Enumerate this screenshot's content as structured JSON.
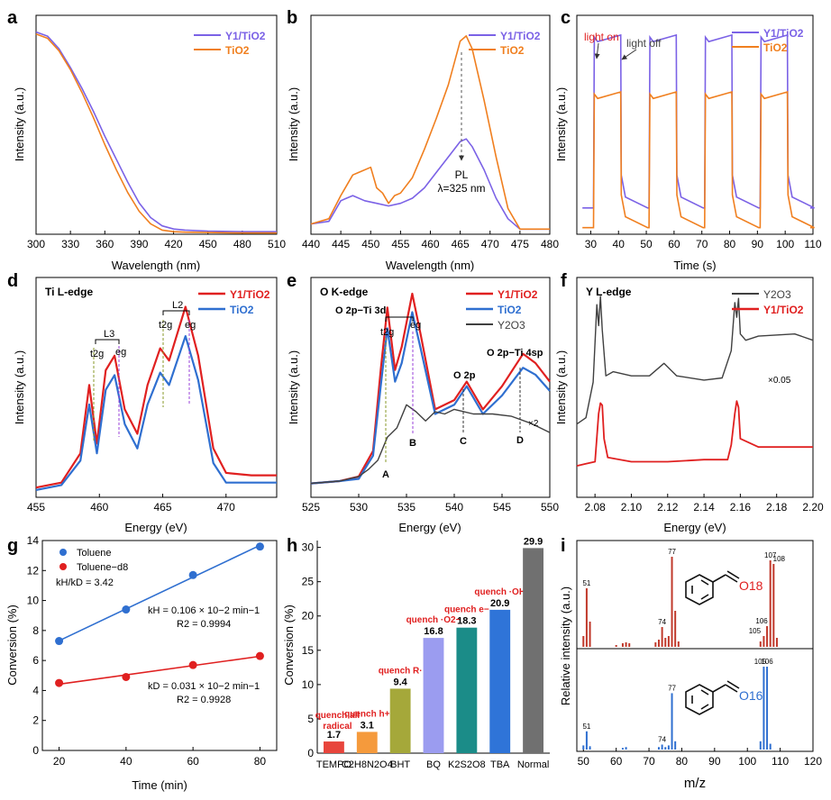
{
  "panels": {
    "a": {
      "label": "a",
      "xlabel": "Wavelength (nm)",
      "ylabel": "Intensity (a.u.)",
      "legend": [
        "Y1/TiO2",
        "TiO2"
      ],
      "xticks": [
        "300",
        "330",
        "360",
        "390",
        "420",
        "450",
        "480",
        "510"
      ]
    },
    "b": {
      "label": "b",
      "xlabel": "Wavelength (nm)",
      "ylabel": "Intensity (a.u.)",
      "legend": [
        "Y1/TiO2",
        "TiO2"
      ],
      "xticks": [
        "440",
        "445",
        "450",
        "455",
        "460",
        "465",
        "470",
        "475",
        "480"
      ],
      "annot_pl": "PL",
      "annot_lambda": "λ=325 nm"
    },
    "c": {
      "label": "c",
      "xlabel": "Time (s)",
      "ylabel": "Intensity (a.u.)",
      "legend": [
        "Y1/TiO2",
        "TiO2"
      ],
      "xticks": [
        "30",
        "40",
        "50",
        "60",
        "70",
        "80",
        "90",
        "100",
        "110"
      ],
      "annot_on": "light on",
      "annot_off": "light off"
    },
    "d": {
      "label": "d",
      "title": "Ti L-edge",
      "xlabel": "Energy (eV)",
      "ylabel": "Intensity (a.u.)",
      "legend": [
        "Y1/TiO2",
        "TiO2"
      ],
      "xticks": [
        "455",
        "460",
        "465",
        "470"
      ],
      "annot_l3": "L3",
      "annot_l2": "L2",
      "annot_t2g": "t2g",
      "annot_eg": "eg"
    },
    "e": {
      "label": "e",
      "title": "O K-edge",
      "xlabel": "Energy (eV)",
      "ylabel": "Intensity (a.u.)",
      "legend": [
        "Y1/TiO2",
        "TiO2",
        "Y2O3"
      ],
      "xticks": [
        "525",
        "530",
        "535",
        "540",
        "545",
        "550"
      ],
      "annot_o2p_ti3d": "O 2p−Ti 3d",
      "annot_o2p": "O 2p",
      "annot_o2p_ti4sp": "O 2p−Ti 4sp",
      "annot_t2g": "t2g",
      "annot_eg": "eg",
      "annot_x2": "×2",
      "points": [
        "A",
        "B",
        "C",
        "D"
      ]
    },
    "f": {
      "label": "f",
      "title": "Y L-edge",
      "xlabel": "Energy (eV)",
      "ylabel": "Intensity (a.u.)",
      "legend": [
        "Y2O3",
        "Y1/TiO2"
      ],
      "xticks": [
        "2.08",
        "2.10",
        "2.12",
        "2.14",
        "2.16",
        "2.18",
        "2.20"
      ],
      "annot_scale": "×0.05"
    },
    "g": {
      "label": "g",
      "xlabel": "Time (min)",
      "ylabel": "Conversion (%)",
      "legend": [
        "Toluene",
        "Toluene−d8"
      ],
      "ratio": "kH/kD = 3.42",
      "kh": "kH = 0.106 × 10−2 min−1",
      "r2h": "R2 = 0.9994",
      "kd": "kD = 0.031 × 10−2 min−1",
      "r2d": "R2 = 0.9928",
      "xticks": [
        "20",
        "40",
        "60",
        "80"
      ],
      "yticks": [
        "0",
        "2",
        "4",
        "6",
        "8",
        "10",
        "12",
        "14"
      ]
    },
    "h": {
      "label": "h",
      "ylabel": "Conversion (%)",
      "yticks": [
        "0",
        "5",
        "10",
        "15",
        "20",
        "25",
        "30"
      ]
    },
    "i": {
      "label": "i",
      "xlabel": "m/z",
      "ylabel": "Relative intensity (a.u.)",
      "xticks": [
        "50",
        "60",
        "70",
        "80",
        "90",
        "100",
        "110",
        "120"
      ],
      "top_label": "O18",
      "bottom_label": "O16"
    }
  },
  "colors": {
    "purple": "#7b62e6",
    "orange": "#f07f1f",
    "red": "#e02020",
    "blue": "#2f6fd0",
    "gray": "#404040"
  },
  "chart_data": [
    {
      "panel": "a",
      "type": "line",
      "xlim": [
        300,
        510
      ],
      "series": [
        {
          "name": "Y1/TiO2",
          "x": [
            300,
            310,
            320,
            330,
            340,
            350,
            360,
            370,
            380,
            390,
            400,
            410,
            420,
            430,
            450,
            480,
            510
          ],
          "y": [
            0.97,
            0.95,
            0.89,
            0.8,
            0.7,
            0.59,
            0.47,
            0.36,
            0.25,
            0.15,
            0.08,
            0.04,
            0.025,
            0.02,
            0.015,
            0.012,
            0.012
          ]
        },
        {
          "name": "TiO2",
          "x": [
            300,
            310,
            320,
            330,
            340,
            350,
            360,
            370,
            380,
            390,
            400,
            410,
            420,
            430,
            450,
            480,
            510
          ],
          "y": [
            0.96,
            0.94,
            0.88,
            0.79,
            0.68,
            0.56,
            0.43,
            0.31,
            0.2,
            0.11,
            0.05,
            0.02,
            0.012,
            0.01,
            0.008,
            0.006,
            0.006
          ]
        }
      ]
    },
    {
      "panel": "b",
      "type": "line",
      "xlim": [
        440,
        480
      ],
      "series": [
        {
          "name": "Y1/TiO2",
          "x": [
            440,
            443,
            445,
            447,
            449,
            451,
            453,
            455,
            457,
            459,
            461,
            463,
            465,
            466,
            467,
            469,
            471,
            473,
            475,
            480
          ],
          "y": [
            0.04,
            0.05,
            0.13,
            0.15,
            0.13,
            0.12,
            0.11,
            0.12,
            0.14,
            0.18,
            0.24,
            0.3,
            0.36,
            0.37,
            0.34,
            0.25,
            0.14,
            0.06,
            0.02,
            0.02
          ]
        },
        {
          "name": "TiO2",
          "x": [
            440,
            443,
            445,
            447,
            448,
            450,
            451,
            452,
            453,
            454,
            455,
            457,
            459,
            461,
            463,
            465,
            466,
            467,
            469,
            471,
            473,
            475,
            480
          ],
          "y": [
            0.04,
            0.06,
            0.15,
            0.23,
            0.24,
            0.26,
            0.18,
            0.16,
            0.12,
            0.15,
            0.16,
            0.22,
            0.33,
            0.45,
            0.58,
            0.75,
            0.77,
            0.72,
            0.52,
            0.3,
            0.1,
            0.02,
            0.02
          ]
        }
      ]
    },
    {
      "panel": "c",
      "type": "line",
      "xlim": [
        25,
        110
      ],
      "series": [
        {
          "name": "Y1/TiO2",
          "on_off": [
            [
              31,
              41
            ],
            [
              51,
              61
            ],
            [
              71,
              81
            ],
            [
              91,
              101
            ]
          ],
          "high": 0.9,
          "low": 0.12
        },
        {
          "name": "TiO2",
          "on_off": [
            [
              31,
              41
            ],
            [
              51,
              61
            ],
            [
              71,
              81
            ],
            [
              91,
              101
            ]
          ],
          "high": 0.64,
          "low": 0.03
        }
      ]
    },
    {
      "panel": "d",
      "type": "line",
      "xlim": [
        455,
        474
      ],
      "series": [
        {
          "name": "Y1/TiO2",
          "x": [
            455,
            457,
            458.5,
            459.2,
            459.8,
            460.5,
            461.2,
            462,
            463,
            463.8,
            464.8,
            465.5,
            466.8,
            467.8,
            469,
            470,
            472,
            474
          ],
          "y": [
            0.04,
            0.06,
            0.18,
            0.46,
            0.22,
            0.52,
            0.58,
            0.36,
            0.26,
            0.46,
            0.61,
            0.56,
            0.78,
            0.58,
            0.2,
            0.1,
            0.09,
            0.09
          ]
        },
        {
          "name": "TiO2",
          "x": [
            455,
            457,
            458.5,
            459.2,
            459.8,
            460.5,
            461.2,
            462,
            463,
            463.8,
            464.8,
            465.5,
            466.8,
            467.8,
            469,
            470,
            472,
            474
          ],
          "y": [
            0.03,
            0.05,
            0.15,
            0.38,
            0.18,
            0.44,
            0.5,
            0.3,
            0.2,
            0.38,
            0.51,
            0.46,
            0.66,
            0.48,
            0.14,
            0.06,
            0.06,
            0.06
          ]
        }
      ]
    },
    {
      "panel": "e",
      "type": "line",
      "xlim": [
        525,
        550
      ],
      "series": [
        {
          "name": "Y1/TiO2",
          "x": [
            525,
            528,
            530,
            531.5,
            532.3,
            533,
            533.8,
            534.5,
            535.6,
            536.5,
            538,
            540,
            541.3,
            543,
            545,
            547.2,
            548.5,
            550
          ],
          "y": [
            0.06,
            0.07,
            0.09,
            0.2,
            0.55,
            0.82,
            0.55,
            0.65,
            0.88,
            0.7,
            0.38,
            0.42,
            0.5,
            0.38,
            0.48,
            0.62,
            0.58,
            0.5
          ]
        },
        {
          "name": "TiO2",
          "x": [
            525,
            528,
            530,
            531.5,
            532.3,
            533,
            533.8,
            534.5,
            535.6,
            536.5,
            538,
            540,
            541.3,
            543,
            545,
            547.2,
            548.5,
            550
          ],
          "y": [
            0.06,
            0.07,
            0.08,
            0.18,
            0.48,
            0.73,
            0.5,
            0.58,
            0.8,
            0.64,
            0.36,
            0.4,
            0.48,
            0.36,
            0.44,
            0.56,
            0.53,
            0.46
          ]
        },
        {
          "name": "Y2O3",
          "x": [
            525,
            528,
            530,
            531,
            532,
            533,
            534,
            535,
            536,
            537,
            538,
            539,
            540,
            542,
            544,
            546,
            548,
            550
          ],
          "y": [
            0.06,
            0.07,
            0.09,
            0.12,
            0.16,
            0.26,
            0.3,
            0.4,
            0.37,
            0.33,
            0.37,
            0.36,
            0.38,
            0.36,
            0.36,
            0.35,
            0.32,
            0.28
          ]
        }
      ]
    },
    {
      "panel": "f",
      "type": "line",
      "xlim": [
        2.07,
        2.2
      ],
      "series": [
        {
          "name": "Y2O3",
          "x": [
            2.07,
            2.075,
            2.079,
            2.081,
            2.082,
            2.083,
            2.084,
            2.086,
            2.09,
            2.1,
            2.11,
            2.118,
            2.125,
            2.14,
            2.15,
            2.155,
            2.157,
            2.158,
            2.159,
            2.16,
            2.163,
            2.17,
            2.19,
            2.2
          ],
          "y": [
            0.35,
            0.38,
            0.55,
            0.92,
            0.82,
            0.96,
            0.8,
            0.58,
            0.6,
            0.58,
            0.58,
            0.64,
            0.58,
            0.56,
            0.57,
            0.7,
            0.93,
            0.86,
            0.95,
            0.78,
            0.75,
            0.77,
            0.78,
            0.75
          ]
        },
        {
          "name": "Y1/TiO2",
          "x": [
            2.07,
            2.075,
            2.08,
            2.082,
            2.083,
            2.084,
            2.085,
            2.087,
            2.1,
            2.12,
            2.14,
            2.153,
            2.155,
            2.157,
            2.158,
            2.159,
            2.16,
            2.17,
            2.19,
            2.2
          ],
          "y": [
            0.15,
            0.16,
            0.17,
            0.4,
            0.45,
            0.44,
            0.28,
            0.19,
            0.17,
            0.17,
            0.18,
            0.18,
            0.25,
            0.4,
            0.46,
            0.43,
            0.28,
            0.24,
            0.24,
            0.24
          ]
        }
      ]
    },
    {
      "panel": "g",
      "type": "scatter",
      "xlim": [
        15,
        85
      ],
      "ylim": [
        0,
        14
      ],
      "series": [
        {
          "name": "Toluene",
          "x": [
            20,
            40,
            60,
            80
          ],
          "y": [
            7.3,
            9.4,
            11.7,
            13.6
          ]
        },
        {
          "name": "Toluene−d8",
          "x": [
            20,
            40,
            60,
            80
          ],
          "y": [
            4.5,
            4.9,
            5.7,
            6.3
          ]
        }
      ]
    },
    {
      "panel": "h",
      "type": "bar",
      "ylim": [
        0,
        30
      ],
      "categories": [
        "TEMPO",
        "C2H8N2O4",
        "BHT",
        "BQ",
        "K2S2O8",
        "TBA",
        "Normal"
      ],
      "values": [
        1.7,
        3.1,
        9.4,
        16.8,
        18.3,
        20.9,
        29.9
      ],
      "value_labels": [
        "1.7",
        "3.1",
        "9.4",
        "16.8",
        "18.3",
        "20.9",
        "29.9"
      ],
      "quench_labels": [
        "quench all radical",
        "quench h+",
        "quench R·",
        "quench ·O2−",
        "quench e−",
        "quench ·OH",
        ""
      ],
      "colors": [
        "#e8453c",
        "#f59a3c",
        "#a5a83a",
        "#9b9cf0",
        "#1b8c88",
        "#2f74d8",
        "#707070"
      ]
    },
    {
      "panel": "i",
      "type": "bar",
      "xlim": [
        48,
        120
      ],
      "series": [
        {
          "name": "O18",
          "mz": [
            50,
            51,
            52,
            60,
            62,
            63,
            64,
            72,
            73,
            74,
            75,
            76,
            77,
            78,
            79,
            104,
            105,
            106,
            107,
            108,
            109
          ],
          "intensity": [
            0.12,
            0.65,
            0.28,
            0.02,
            0.04,
            0.05,
            0.04,
            0.05,
            0.08,
            0.22,
            0.1,
            0.12,
            1.0,
            0.4,
            0.06,
            0.06,
            0.12,
            0.23,
            0.96,
            0.92,
            0.1
          ],
          "peak_labels": {
            "51": "51",
            "74": "74",
            "77": "77",
            "105": "105",
            "106": "106",
            "107": "107",
            "108": "108"
          }
        },
        {
          "name": "O16",
          "mz": [
            50,
            51,
            52,
            62,
            63,
            73,
            74,
            75,
            76,
            77,
            78,
            104,
            105,
            106,
            107
          ],
          "intensity": [
            0.05,
            0.22,
            0.04,
            0.02,
            0.03,
            0.03,
            0.06,
            0.03,
            0.05,
            0.68,
            0.1,
            0.1,
            1.0,
            1.0,
            0.07
          ],
          "peak_labels": {
            "51": "51",
            "74": "74",
            "77": "77",
            "105": "105",
            "106": "106"
          }
        }
      ]
    }
  ]
}
